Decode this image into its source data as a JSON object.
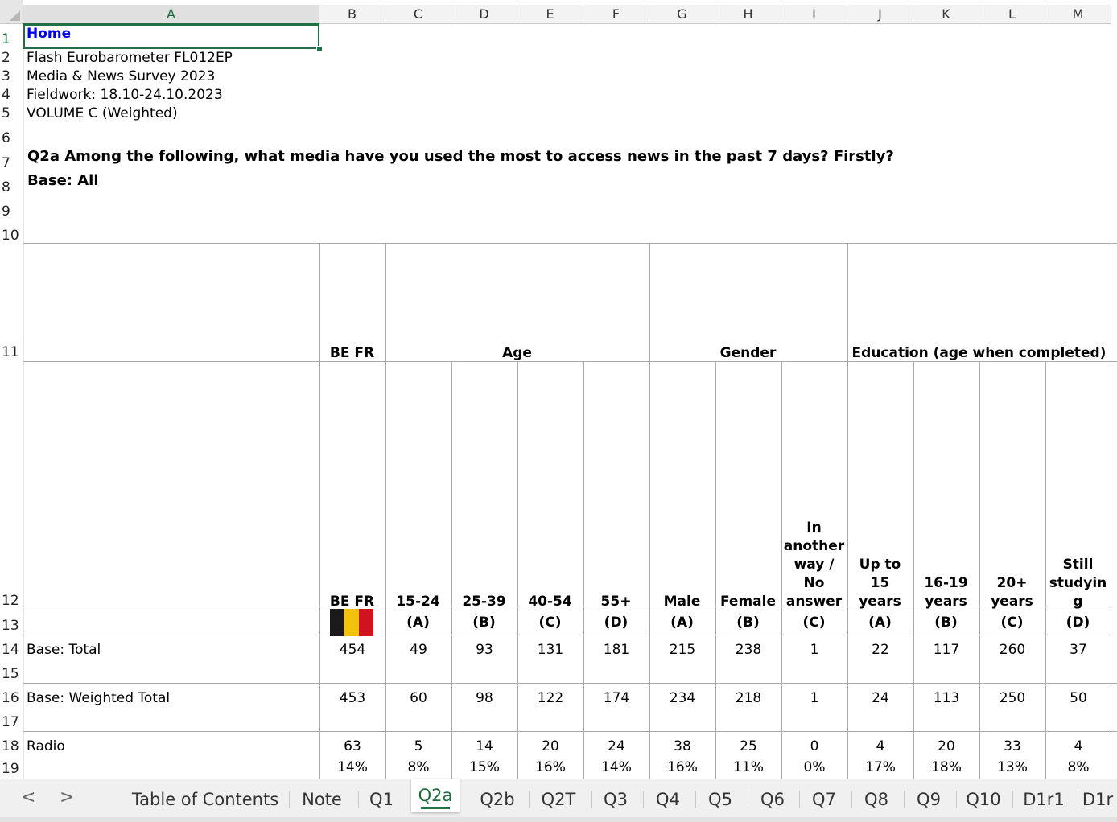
{
  "columns": [
    "A",
    "B",
    "C",
    "D",
    "E",
    "F",
    "G",
    "H",
    "I",
    "J",
    "K",
    "L",
    "M"
  ],
  "rows": [
    "1",
    "2",
    "3",
    "4",
    "5",
    "6",
    "7",
    "8",
    "9",
    "10",
    "11",
    "12",
    "13",
    "14",
    "15",
    "16",
    "17",
    "18",
    "19"
  ],
  "header": {
    "home_link": "Home",
    "line2": "Flash Eurobarometer FL012EP",
    "line3": "Media & News Survey 2023",
    "line4": "Fieldwork: 18.10-24.10.2023",
    "line5": "VOLUME C (Weighted)",
    "question": "Q2a Among the following, what media have you used the most to access news in the past 7 days? Firstly?",
    "base": "Base: All"
  },
  "groups": {
    "country": "BE FR",
    "age": "Age",
    "gender": "Gender",
    "education": "Education (age when completed)"
  },
  "subheaders": {
    "b": "BE FR",
    "c": "15-24",
    "d": "25-39",
    "e": "40-54",
    "f": "55+",
    "g": "Male",
    "h": "Female",
    "i_lines": [
      "In",
      "another",
      "way /",
      "No",
      "answer"
    ],
    "j_lines": [
      "Up to",
      "15",
      "years"
    ],
    "k_lines": [
      "16-19",
      "years"
    ],
    "l_lines": [
      "20+",
      "years"
    ],
    "m_lines": [
      "Still",
      "studyin",
      "g"
    ]
  },
  "letters": {
    "c": "(A)",
    "d": "(B)",
    "e": "(C)",
    "f": "(D)",
    "g": "(A)",
    "h": "(B)",
    "i": "(C)",
    "j": "(A)",
    "k": "(B)",
    "l": "(C)",
    "m": "(D)"
  },
  "flag_colors": [
    "#1a1a1a",
    "#f4c20d",
    "#d0141f"
  ],
  "table_rows": [
    {
      "label": "Base: Total",
      "values": [
        "454",
        "49",
        "93",
        "131",
        "181",
        "215",
        "238",
        "1",
        "22",
        "117",
        "260",
        "37"
      ]
    },
    {
      "label": "Base: Weighted Total",
      "values": [
        "453",
        "60",
        "98",
        "122",
        "174",
        "234",
        "218",
        "1",
        "24",
        "113",
        "250",
        "50"
      ]
    },
    {
      "label": "Radio",
      "values": [
        "63",
        "5",
        "14",
        "20",
        "24",
        "38",
        "25",
        "0",
        "4",
        "20",
        "33",
        "4"
      ],
      "percents": [
        "14%",
        "8%",
        "15%",
        "16%",
        "14%",
        "16%",
        "11%",
        "0%",
        "17%",
        "18%",
        "13%",
        "8%"
      ]
    }
  ],
  "tabs": {
    "prev": "<",
    "next": ">",
    "items": [
      "Table of Contents",
      "Note",
      "Q1",
      "Q2a",
      "Q2b",
      "Q2T",
      "Q3",
      "Q4",
      "Q5",
      "Q6",
      "Q7",
      "Q8",
      "Q9",
      "Q10",
      "D1r1",
      "D1r"
    ],
    "active": "Q2a"
  }
}
